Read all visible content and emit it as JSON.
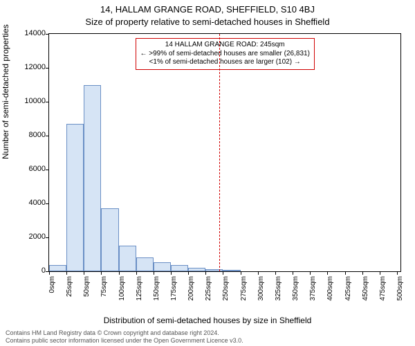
{
  "titles": {
    "line1": "14, HALLAM GRANGE ROAD, SHEFFIELD, S10 4BJ",
    "line2": "Size of property relative to semi-detached houses in Sheffield"
  },
  "axes": {
    "ylabel": "Number of semi-detached properties",
    "xlabel": "Distribution of semi-detached houses by size in Sheffield"
  },
  "footer": {
    "line1": "Contains HM Land Registry data © Crown copyright and database right 2024.",
    "line2": "Contains public sector information licensed under the Open Government Licence v3.0."
  },
  "chart": {
    "type": "histogram",
    "bar_fill": "#d6e4f5",
    "bar_stroke": "#6a8fc5",
    "background": "#ffffff",
    "border_color": "#000000",
    "ylim": [
      0,
      14000
    ],
    "yticks": [
      0,
      2000,
      4000,
      6000,
      8000,
      10000,
      12000,
      14000
    ],
    "xtick_step": 25,
    "xtick_count": 21,
    "xtick_suffix": "sqm",
    "xmax_value": 505,
    "bar_width_value": 25,
    "values": [
      350,
      8700,
      11000,
      3700,
      1500,
      800,
      550,
      350,
      200,
      120,
      80,
      0,
      0,
      0,
      0,
      0,
      0,
      0,
      0,
      0,
      0
    ],
    "marker_value": 245,
    "marker_color": "#d00000",
    "annotation": {
      "line1": "14 HALLAM GRANGE ROAD: 245sqm",
      "line2": "← >99% of semi-detached houses are smaller (26,831)",
      "line3": "<1% of semi-detached houses are larger (102) →",
      "border_color": "#d00000"
    }
  }
}
